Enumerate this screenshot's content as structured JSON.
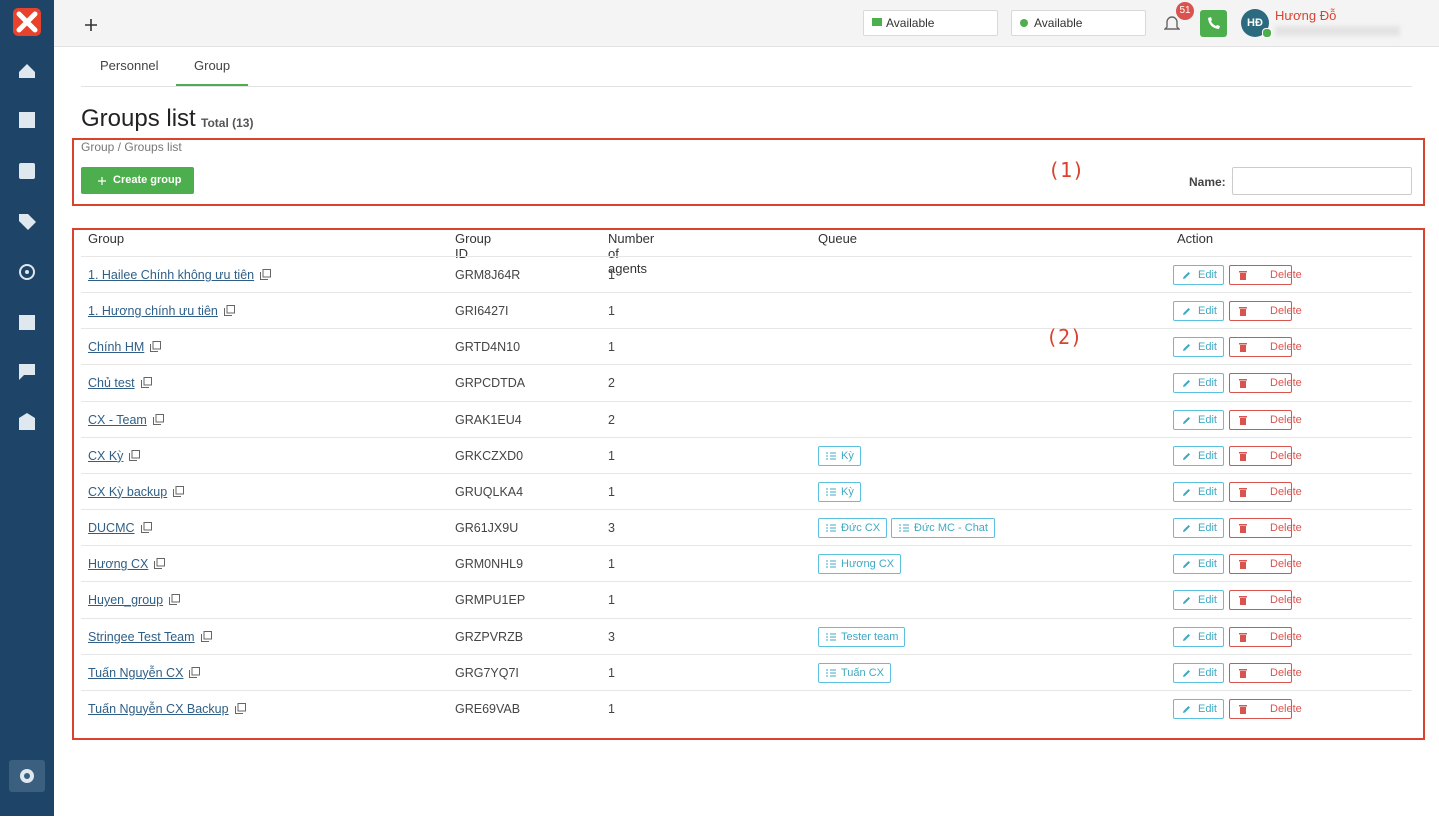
{
  "header": {
    "status_chat": "Available",
    "status_call": "Available",
    "notifications": "51",
    "avatar": "HĐ",
    "user_name": "Hương Đỗ"
  },
  "tabs": [
    "Personnel",
    "Group"
  ],
  "page": {
    "title": "Groups list",
    "total": "Total (13)",
    "breadcrumb": "Group / Groups list",
    "create_button": "Create group",
    "filter_label": "Name:"
  },
  "annotations": [
    "(1)",
    "(2)"
  ],
  "table": {
    "columns": [
      "Group",
      "Group ID",
      "Number of agents",
      "Queue",
      "Action"
    ],
    "edit": "Edit",
    "delete": "Delete",
    "rows": [
      {
        "group": "1. Hailee Chính không ưu tiên",
        "id": "GRM8J64R",
        "agents": 1,
        "queues": []
      },
      {
        "group": "1. Hương chính ưu tiên",
        "id": "GRI6427I",
        "agents": 1,
        "queues": []
      },
      {
        "group": "Chính HM",
        "id": "GRTD4N10",
        "agents": 1,
        "queues": []
      },
      {
        "group": "Chủ test",
        "id": "GRPCDTDA",
        "agents": 2,
        "queues": []
      },
      {
        "group": "CX - Team",
        "id": "GRAK1EU4",
        "agents": 2,
        "queues": []
      },
      {
        "group": "CX Kỳ",
        "id": "GRKCZXD0",
        "agents": 1,
        "queues": [
          "Kỳ"
        ]
      },
      {
        "group": "CX Kỳ backup",
        "id": "GRUQLKA4",
        "agents": 1,
        "queues": [
          "Kỳ"
        ]
      },
      {
        "group": "DUCMC",
        "id": "GR61JX9U",
        "agents": 3,
        "queues": [
          "Đức CX",
          "Đức MC - Chat"
        ]
      },
      {
        "group": "Hương CX",
        "id": "GRM0NHL9",
        "agents": 1,
        "queues": [
          "Hương CX"
        ]
      },
      {
        "group": "Huyen_group",
        "id": "GRMPU1EP",
        "agents": 1,
        "queues": []
      },
      {
        "group": "Stringee Test Team",
        "id": "GRZPVRZB",
        "agents": 3,
        "queues": [
          "Tester team"
        ]
      },
      {
        "group": "Tuấn Nguyễn CX",
        "id": "GRG7YQ7I",
        "agents": 1,
        "queues": [
          "Tuấn CX"
        ]
      },
      {
        "group": "Tuấn Nguyễn CX Backup",
        "id": "GRE69VAB",
        "agents": 1,
        "queues": []
      }
    ]
  }
}
